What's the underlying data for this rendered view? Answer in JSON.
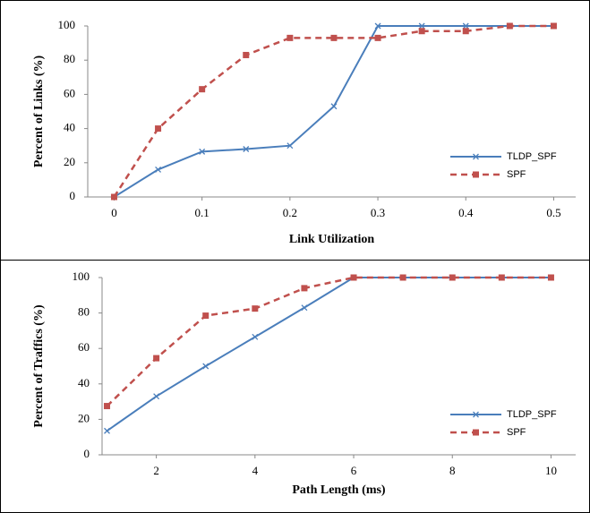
{
  "chart_data": [
    {
      "type": "line",
      "x_label": "Link Utilization",
      "y_label": "Percent of Links (%)",
      "x": [
        0,
        0.05,
        0.1,
        0.15,
        0.2,
        0.25,
        0.3,
        0.35,
        0.4,
        0.45,
        0.5
      ],
      "series": [
        {
          "name": "TLDP_SPF",
          "color": "#4a7ebb",
          "line_style": "solid",
          "marker": "x",
          "values": [
            0,
            16,
            26.5,
            28,
            30,
            53,
            100,
            100,
            100,
            100,
            100
          ]
        },
        {
          "name": "SPF",
          "color": "#c0504d",
          "line_style": "dashed",
          "marker": "square",
          "values": [
            0,
            40,
            63,
            83,
            93,
            93,
            93,
            97,
            97,
            100,
            100
          ]
        }
      ],
      "xlim": [
        -0.03,
        0.525
      ],
      "xticks": [
        0,
        0.1,
        0.2,
        0.3,
        0.4,
        0.5
      ],
      "ylim": [
        0,
        100
      ],
      "yticks": [
        0,
        20,
        40,
        60,
        80,
        100
      ],
      "legend": "lower right"
    },
    {
      "type": "line",
      "x_label": "Path Length (ms)",
      "y_label": "Percent of Traffics (%)",
      "x": [
        1,
        2,
        3,
        4,
        5,
        6,
        7,
        8,
        9,
        10
      ],
      "series": [
        {
          "name": "TLDP_SPF",
          "color": "#4a7ebb",
          "line_style": "solid",
          "marker": "x",
          "values": [
            13.5,
            33,
            50,
            66.5,
            83,
            100,
            100,
            100,
            100,
            100
          ]
        },
        {
          "name": "SPF",
          "color": "#c0504d",
          "line_style": "dashed",
          "marker": "square",
          "values": [
            27.5,
            54.5,
            78.5,
            82.5,
            94,
            100,
            100,
            100,
            100,
            100
          ]
        }
      ],
      "xlim": [
        0.9,
        10.5
      ],
      "xticks": [
        2,
        4,
        6,
        8,
        10
      ],
      "ylim": [
        0,
        100
      ],
      "yticks": [
        0,
        20,
        40,
        60,
        80,
        100
      ],
      "legend": "lower right"
    }
  ]
}
